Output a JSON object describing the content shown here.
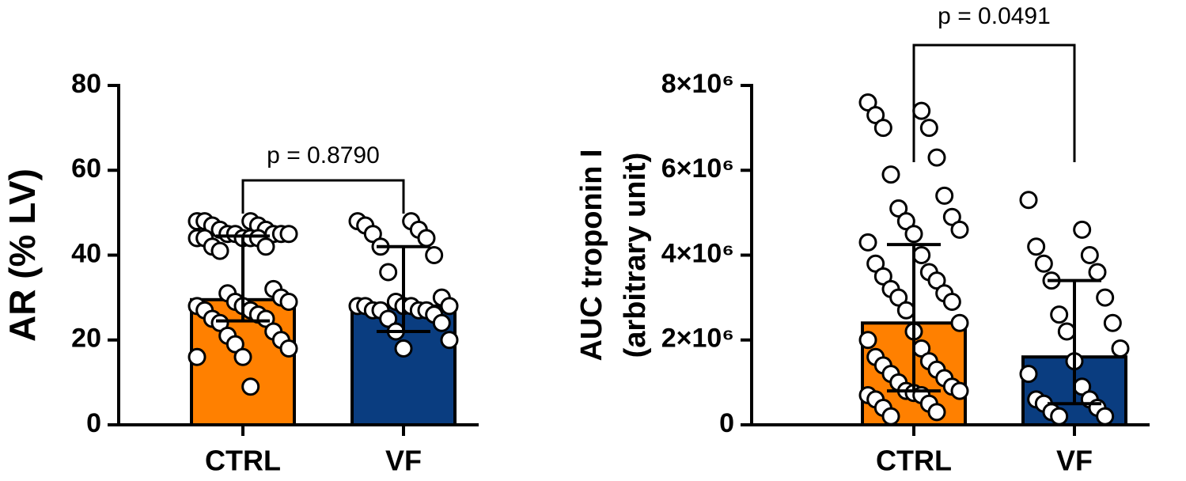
{
  "chart_data": [
    {
      "type": "bar",
      "ylabel": "AR (% LV)",
      "categories": [
        "CTRL",
        "VF"
      ],
      "colors": [
        "#ff8000",
        "#0a3d80"
      ],
      "values": [
        29.5,
        28
      ],
      "error_lower": [
        24.5,
        22
      ],
      "error_upper": [
        44.5,
        42
      ],
      "points": [
        [
          48,
          48,
          48,
          47,
          47,
          46,
          46,
          45,
          45,
          45,
          45,
          45,
          44,
          44,
          44,
          44,
          44,
          42,
          42,
          41,
          32,
          31,
          30,
          29,
          29,
          28,
          28,
          27,
          27,
          26,
          25,
          25,
          24,
          22,
          21,
          20,
          19,
          18,
          16,
          16,
          9
        ],
        [
          48,
          48,
          47,
          46,
          45,
          44,
          42,
          40,
          36,
          30,
          29,
          28,
          28,
          28,
          28,
          28,
          27,
          27,
          27,
          27,
          26,
          25,
          24,
          22,
          20,
          18
        ]
      ],
      "annotation": "p = 0.8790",
      "ylim": [
        0,
        80
      ],
      "yticks": [
        0,
        20,
        40,
        60,
        80
      ]
    },
    {
      "type": "bar",
      "ylabel": [
        "AUC troponin I",
        "(arbitrary unit)"
      ],
      "categories": [
        "CTRL",
        "VF"
      ],
      "colors": [
        "#ff8000",
        "#0a3d80"
      ],
      "values": [
        2400000,
        1600000
      ],
      "error_lower": [
        800000,
        500000
      ],
      "error_upper": [
        4250000,
        3400000
      ],
      "points": [
        [
          7600000,
          7400000,
          7300000,
          7000000,
          7000000,
          6300000,
          5900000,
          5400000,
          5100000,
          4900000,
          4800000,
          4600000,
          4500000,
          4300000,
          4000000,
          3800000,
          3600000,
          3500000,
          3400000,
          3200000,
          3100000,
          3000000,
          2900000,
          2700000,
          2400000,
          2200000,
          2000000,
          1800000,
          1600000,
          1500000,
          1400000,
          1300000,
          1200000,
          1100000,
          1000000,
          900000,
          800000,
          800000,
          750000,
          700000,
          700000,
          600000,
          500000,
          400000,
          300000,
          200000
        ],
        [
          5300000,
          4600000,
          4200000,
          4000000,
          3800000,
          3600000,
          3400000,
          3000000,
          2600000,
          2400000,
          2200000,
          1800000,
          1500000,
          1200000,
          900000,
          600000,
          600000,
          500000,
          400000,
          300000,
          200000,
          200000
        ]
      ],
      "annotation": "p = 0.0491",
      "ylim": [
        0,
        8000000
      ],
      "yticks": [
        0,
        {
          "value": 2000000,
          "label": "2×10⁶"
        },
        {
          "value": 4000000,
          "label": "4×10⁶"
        },
        {
          "value": 6000000,
          "label": "6×10⁶"
        },
        {
          "value": 8000000,
          "label": "8×10⁶"
        }
      ]
    }
  ]
}
